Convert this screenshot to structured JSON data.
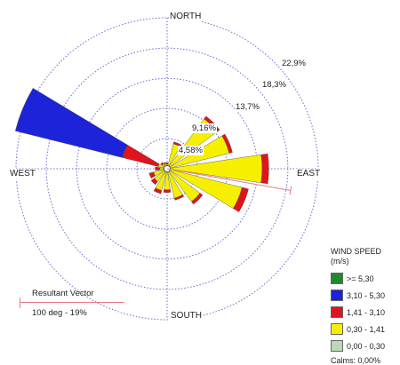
{
  "chart_data": {
    "type": "wind_rose",
    "directions": [
      "NORTH",
      "EAST",
      "SOUTH",
      "WEST"
    ],
    "ring_labels": [
      "4,58%",
      "9,16%",
      "13,7%",
      "18,3%",
      "22,9%"
    ],
    "ring_values": [
      4.58,
      9.16,
      13.7,
      18.3,
      22.9
    ],
    "legend": {
      "title": "WIND SPEED",
      "unit": "(m/s)",
      "classes": [
        {
          "label": ">= 5,30",
          "color": "#1f8a2a"
        },
        {
          "label": "3,10 - 5,30",
          "color": "#1c23d9"
        },
        {
          "label": "1,41 - 3,10",
          "color": "#e0141c"
        },
        {
          "label": "0,30 - 1,41",
          "color": "#f6f000"
        },
        {
          "label": "0,00 - 0,30",
          "color": "#bcd9b5"
        }
      ],
      "calms": "Calms: 0,00%"
    },
    "resultant": {
      "title": "Resultant Vector",
      "value": "100 deg - 19%",
      "direction_deg": 100,
      "percent": 19,
      "color": "#e87a8a"
    },
    "petals": [
      {
        "dir": 0,
        "segs": [
          0.3,
          0.2
        ]
      },
      {
        "dir": 22.5,
        "segs": [
          3.5,
          0.3
        ]
      },
      {
        "dir": 45,
        "segs": [
          9.0,
          0.5
        ]
      },
      {
        "dir": 67.5,
        "segs": [
          9.3,
          0.5
        ]
      },
      {
        "dir": 90,
        "segs": [
          14.0,
          1.0
        ]
      },
      {
        "dir": 112.5,
        "segs": [
          11.3,
          1.0
        ]
      },
      {
        "dir": 135,
        "segs": [
          5.8,
          0.5
        ]
      },
      {
        "dir": 157.5,
        "segs": [
          4.2,
          0.3
        ]
      },
      {
        "dir": 180,
        "segs": [
          2.8,
          0.4
        ]
      },
      {
        "dir": 202.5,
        "segs": [
          3.0,
          0.5
        ]
      },
      {
        "dir": 225,
        "segs": [
          2.0,
          0.6
        ]
      },
      {
        "dir": 247.5,
        "segs": [
          1.7,
          0.7
        ]
      },
      {
        "dir": 270,
        "segs": [
          0.7,
          0.7
        ]
      },
      {
        "dir": 292.5,
        "segs": [
          1.0,
          5.6,
          16.7
        ]
      },
      {
        "dir": 315,
        "segs": [
          0.5,
          0.3
        ]
      },
      {
        "dir": 337.5,
        "segs": [
          0.4,
          0.2
        ]
      }
    ]
  }
}
